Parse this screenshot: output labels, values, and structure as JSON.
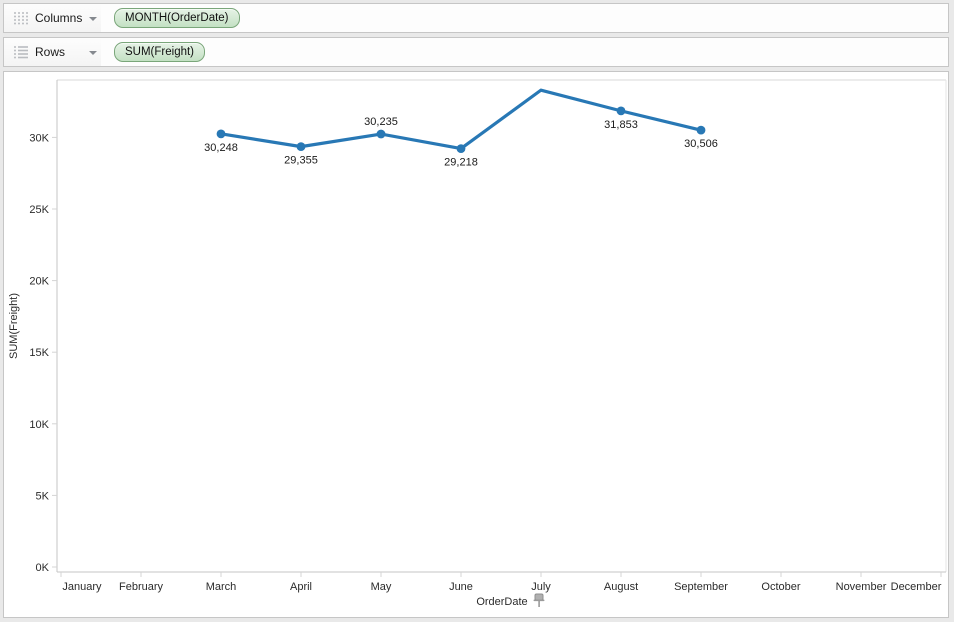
{
  "shelves": {
    "columns": {
      "label": "Columns",
      "pill": "MONTH(OrderDate)"
    },
    "rows": {
      "label": "Rows",
      "pill": "SUM(Freight)"
    }
  },
  "icons": {
    "columns_shelf": "columns-dots-icon",
    "rows_shelf": "rows-list-icon",
    "dropdown": "chevron-down-icon",
    "axis_pin": "pushpin-icon"
  },
  "colors": {
    "line": "#2878B5",
    "pill_border": "#7aa67a",
    "pill_fill": "#cde6cd",
    "axis_line": "#c5c5c5",
    "grid_light": "#d9d9d9",
    "text": "#2b2b2b"
  },
  "chart_data": {
    "type": "line",
    "title": "",
    "xlabel": "OrderDate",
    "ylabel": "SUM(Freight)",
    "x_categories": [
      "January",
      "February",
      "March",
      "April",
      "May",
      "June",
      "July",
      "August",
      "September",
      "October",
      "November",
      "December"
    ],
    "y_ticks": [
      "0K",
      "5K",
      "10K",
      "15K",
      "20K",
      "25K",
      "30K"
    ],
    "y_tick_step": 5000,
    "ylim": [
      0,
      34000
    ],
    "grid": "off",
    "legend": "none",
    "series": [
      {
        "name": "SUM(Freight)",
        "points": [
          {
            "month": "March",
            "value": 30248,
            "label": "30,248",
            "label_side": "below",
            "marker": true
          },
          {
            "month": "April",
            "value": 29355,
            "label": "29,355",
            "label_side": "below",
            "marker": true
          },
          {
            "month": "May",
            "value": 30235,
            "label": "30,235",
            "label_side": "above",
            "marker": true
          },
          {
            "month": "June",
            "value": 29218,
            "label": "29,218",
            "label_side": "below",
            "marker": true
          },
          {
            "month": "July",
            "value": 33300,
            "label": "",
            "label_side": "none",
            "marker": false,
            "estimated": true
          },
          {
            "month": "August",
            "value": 31853,
            "label": "31,853",
            "label_side": "below",
            "marker": true
          },
          {
            "month": "September",
            "value": 30506,
            "label": "30,506",
            "label_side": "below",
            "marker": true
          }
        ]
      }
    ]
  }
}
